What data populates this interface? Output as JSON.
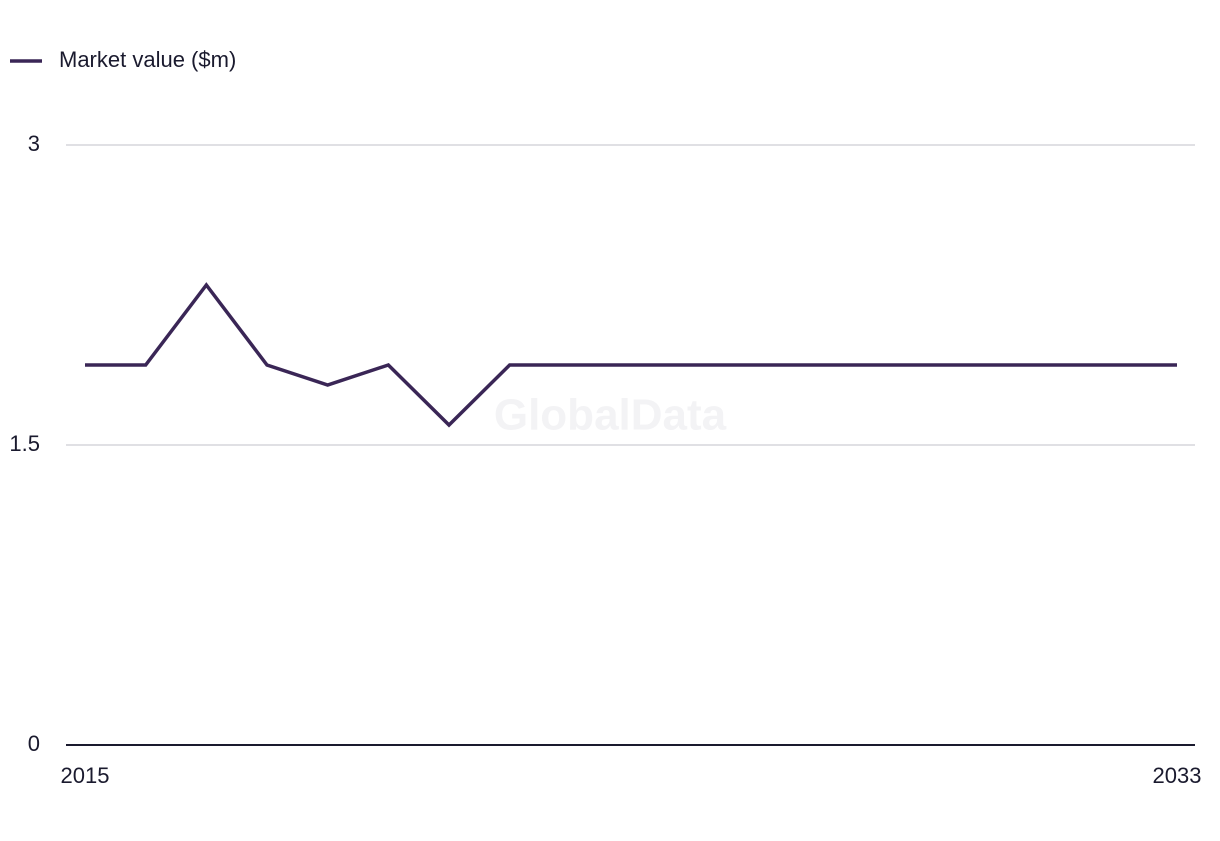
{
  "chart_data": {
    "type": "line",
    "watermark": "GlobalData",
    "x": [
      2015,
      2016,
      2017,
      2018,
      2019,
      2020,
      2021,
      2022,
      2023,
      2024,
      2025,
      2026,
      2027,
      2028,
      2029,
      2030,
      2031,
      2032,
      2033
    ],
    "series": [
      {
        "name": "Market value ($m)",
        "color": "#3a2656",
        "values": [
          1.9,
          1.9,
          2.3,
          1.9,
          1.8,
          1.9,
          1.6,
          1.9,
          1.9,
          1.9,
          1.9,
          1.9,
          1.9,
          1.9,
          1.9,
          1.9,
          1.9,
          1.9,
          1.9
        ]
      }
    ],
    "xlim": [
      2015,
      2033
    ],
    "xticks": [
      2015,
      2033
    ],
    "ylim": [
      0,
      3
    ],
    "yticks": [
      0,
      1.5,
      3
    ],
    "grid": true,
    "legend": "top-left"
  }
}
